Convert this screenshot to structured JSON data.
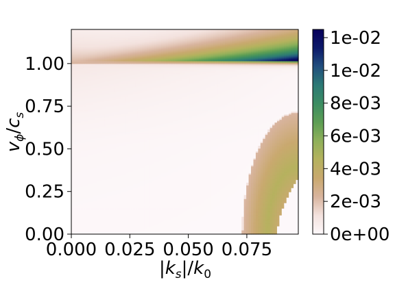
{
  "chart_data": {
    "type": "heatmap",
    "title": "",
    "xlabel": "|k_s|/k_0",
    "ylabel": "v_φ/c_s",
    "xlim": [
      0.0,
      0.097
    ],
    "ylim": [
      0.0,
      1.2
    ],
    "x_ticks": [
      0.0,
      0.025,
      0.05,
      0.075
    ],
    "x_tick_labels": [
      "0.000",
      "0.025",
      "0.050",
      "0.075"
    ],
    "y_ticks": [
      0.0,
      0.25,
      0.5,
      0.75,
      1.0
    ],
    "y_tick_labels": [
      "0.00",
      "0.25",
      "0.50",
      "0.75",
      "1.00"
    ],
    "colorbar": {
      "colormap": "gist_earth_r",
      "range": [
        0.0,
        0.0125
      ],
      "ticks": [
        0.0,
        0.002,
        0.004,
        0.006,
        0.008,
        0.01,
        0.012
      ],
      "tick_labels": [
        "0e+00",
        "2e-03",
        "4e-03",
        "6e-03",
        "8e-03",
        "1e-02",
        "1e-02"
      ],
      "colors": [
        "#fdf8fa",
        "#f3e2de",
        "#d8b49e",
        "#c9a96f",
        "#b5b25e",
        "#8fb05a",
        "#5d9e54",
        "#3c8d62",
        "#2c7a75",
        "#214f7e",
        "#0c1a6a",
        "#07005a"
      ]
    },
    "features": [
      {
        "name": "resonance band",
        "v_phi_center": 1.02,
        "peak_value": 0.0125,
        "x_range": [
          0.0,
          0.097
        ]
      },
      {
        "name": "secondary arc",
        "center_k": 0.097,
        "radius_k": 0.024,
        "peak_value": 0.0045,
        "v_phi_range": [
          0.0,
          0.72
        ]
      },
      {
        "name": "undefined region",
        "k_min": 0.088,
        "v_phi_max": 0.33
      }
    ],
    "grid": false,
    "legend": "none"
  }
}
